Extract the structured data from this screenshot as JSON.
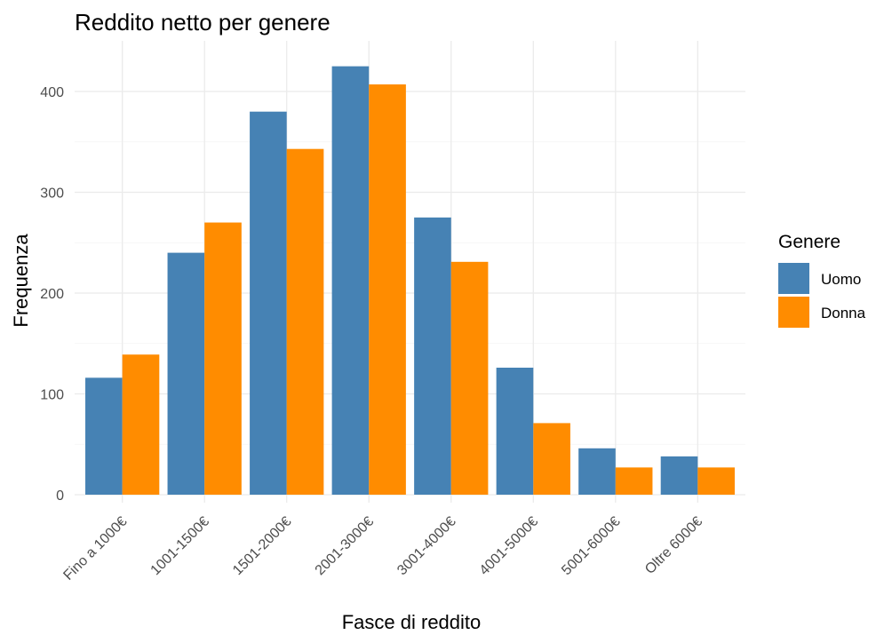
{
  "chart_data": {
    "type": "bar",
    "title": "Reddito netto per genere",
    "xlabel": "Fasce di reddito",
    "ylabel": "Frequenza",
    "categories": [
      "Fino a 1000€",
      "1001-1500€",
      "1501-2000€",
      "2001-3000€",
      "3001-4000€",
      "4001-5000€",
      "5001-6000€",
      "Oltre 6000€"
    ],
    "series": [
      {
        "name": "Uomo",
        "color": "#4682B4",
        "values": [
          116,
          240,
          380,
          425,
          275,
          126,
          46,
          38
        ]
      },
      {
        "name": "Donna",
        "color": "#FF8C00",
        "values": [
          139,
          270,
          343,
          407,
          231,
          71,
          27,
          27
        ]
      }
    ],
    "y_ticks": [
      0,
      100,
      200,
      300,
      400
    ],
    "ylim": [
      0,
      445
    ],
    "grid": true,
    "legend": {
      "title": "Genere",
      "position": "right"
    }
  }
}
